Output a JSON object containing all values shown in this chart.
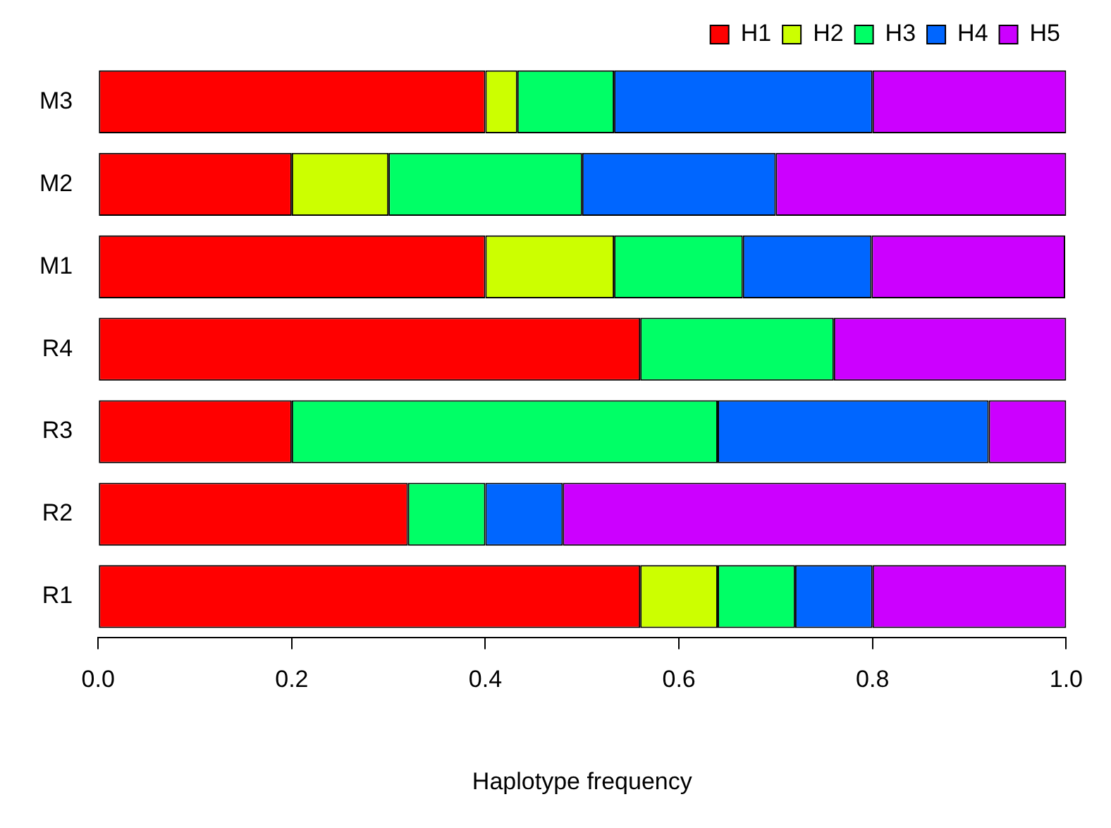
{
  "chart_data": {
    "type": "bar",
    "orientation": "horizontal",
    "stacked": true,
    "xlabel": "Haplotype frequency",
    "categories": [
      "M3",
      "M2",
      "M1",
      "R4",
      "R3",
      "R2",
      "R1"
    ],
    "series": [
      {
        "name": "H1",
        "color": "#ff0000",
        "values": [
          0.4,
          0.2,
          0.4,
          0.56,
          0.2,
          0.32,
          0.56
        ]
      },
      {
        "name": "H2",
        "color": "#ccff00",
        "values": [
          0.033,
          0.1,
          0.133,
          0,
          0,
          0,
          0.08
        ]
      },
      {
        "name": "H3",
        "color": "#00ff66",
        "values": [
          0.1,
          0.2,
          0.133,
          0.2,
          0.44,
          0.08,
          0.08
        ]
      },
      {
        "name": "H4",
        "color": "#0066ff",
        "values": [
          0.267,
          0.2,
          0.133,
          0,
          0.28,
          0.08,
          0.08
        ]
      },
      {
        "name": "H5",
        "color": "#cc00ff",
        "values": [
          0.2,
          0.3,
          0.2,
          0.24,
          0.08,
          0.52,
          0.2
        ]
      }
    ],
    "xlim": [
      0,
      1
    ],
    "xticks": [
      {
        "value": 0,
        "label": "0.0"
      },
      0.2,
      0.4,
      0.6,
      0.8,
      {
        "value": 1,
        "label": "1.0"
      }
    ],
    "grid": false,
    "legend": "top right"
  }
}
